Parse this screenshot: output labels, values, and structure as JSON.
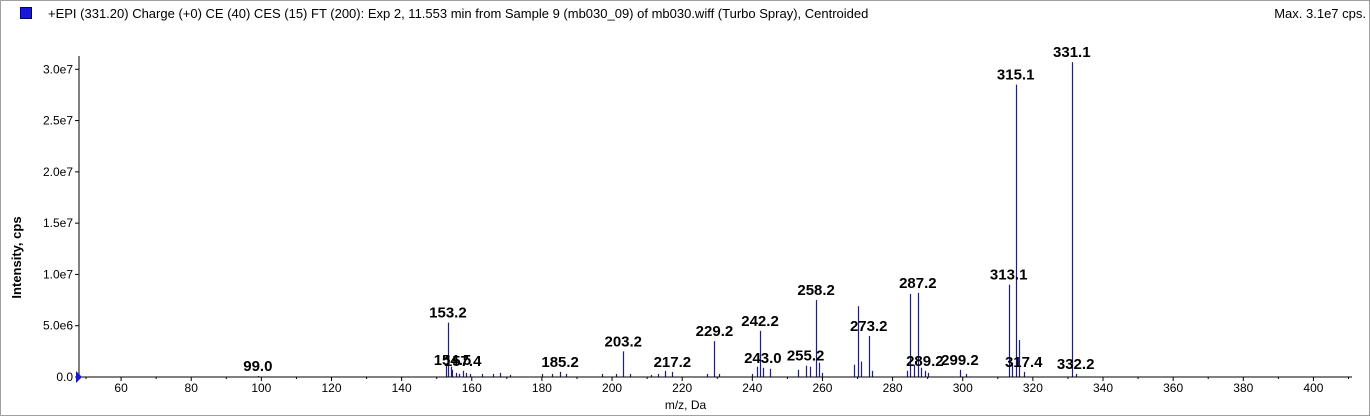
{
  "header": {
    "title": "+EPI (331.20) Charge (+0) CE (40) CES (15) FT (200): Exp 2, 11.553 min from Sample 9 (mb030_09) of mb030.wiff (Turbo Spray), Centroided",
    "max_label": "Max. 3.1e7 cps."
  },
  "colors": {
    "series": "#1c1c8c",
    "legend": "#1818d8"
  },
  "chart_data": {
    "type": "bar",
    "title": "",
    "xlabel": "m/z, Da",
    "ylabel": "Intensity, cps",
    "xlim": [
      48,
      411
    ],
    "ylim": [
      0,
      31100000
    ],
    "x_ticks": [
      60,
      80,
      100,
      120,
      140,
      160,
      180,
      200,
      220,
      240,
      260,
      280,
      300,
      320,
      340,
      360,
      380,
      400
    ],
    "x_tick_labels": [
      "60",
      "80",
      "100",
      "120",
      "140",
      "160",
      "180",
      "200",
      "220",
      "240",
      "260",
      "280",
      "300",
      "320",
      "340",
      "360",
      "380",
      "400"
    ],
    "y_ticks": [
      0,
      5000000,
      10000000,
      15000000,
      20000000,
      25000000,
      30000000
    ],
    "y_tick_labels": [
      "0.0",
      "5.0e6",
      "1.0e7",
      "1.5e7",
      "2.0e7",
      "2.5e7",
      "3.0e7"
    ],
    "grid": false,
    "peaks": [
      {
        "mz": 99.0,
        "intensity": 100000,
        "label": "99.0"
      },
      {
        "mz": 152.7,
        "intensity": 1100000
      },
      {
        "mz": 153.2,
        "intensity": 5300000,
        "label": "153.2"
      },
      {
        "mz": 154.0,
        "intensity": 1000000
      },
      {
        "mz": 154.5,
        "intensity": 700000,
        "label": "154.5"
      },
      {
        "mz": 155.4,
        "intensity": 400000
      },
      {
        "mz": 156.3,
        "intensity": 300000
      },
      {
        "mz": 157.4,
        "intensity": 600000,
        "label": "157.4"
      },
      {
        "mz": 158.3,
        "intensity": 400000
      },
      {
        "mz": 159.5,
        "intensity": 300000
      },
      {
        "mz": 163.0,
        "intensity": 300000
      },
      {
        "mz": 166.0,
        "intensity": 300000
      },
      {
        "mz": 168.0,
        "intensity": 400000
      },
      {
        "mz": 171.0,
        "intensity": 200000
      },
      {
        "mz": 180.0,
        "intensity": 300000
      },
      {
        "mz": 183.0,
        "intensity": 300000
      },
      {
        "mz": 185.2,
        "intensity": 500000,
        "label": "185.2"
      },
      {
        "mz": 187.0,
        "intensity": 300000
      },
      {
        "mz": 197.0,
        "intensity": 300000
      },
      {
        "mz": 201.0,
        "intensity": 300000
      },
      {
        "mz": 203.2,
        "intensity": 2500000,
        "label": "203.2"
      },
      {
        "mz": 205.0,
        "intensity": 300000
      },
      {
        "mz": 211.0,
        "intensity": 200000
      },
      {
        "mz": 213.0,
        "intensity": 300000
      },
      {
        "mz": 215.0,
        "intensity": 600000
      },
      {
        "mz": 217.2,
        "intensity": 500000,
        "label": "217.2"
      },
      {
        "mz": 227.0,
        "intensity": 300000
      },
      {
        "mz": 229.2,
        "intensity": 3500000,
        "label": "229.2"
      },
      {
        "mz": 230.5,
        "intensity": 300000
      },
      {
        "mz": 240.0,
        "intensity": 300000
      },
      {
        "mz": 241.3,
        "intensity": 1000000
      },
      {
        "mz": 242.2,
        "intensity": 4500000,
        "label": "242.2"
      },
      {
        "mz": 243.0,
        "intensity": 900000,
        "label": "243.0"
      },
      {
        "mz": 245.0,
        "intensity": 800000
      },
      {
        "mz": 253.0,
        "intensity": 700000
      },
      {
        "mz": 255.2,
        "intensity": 1100000,
        "label": "255.2"
      },
      {
        "mz": 256.5,
        "intensity": 1000000
      },
      {
        "mz": 258.2,
        "intensity": 7500000,
        "label": "258.2"
      },
      {
        "mz": 259.0,
        "intensity": 1400000
      },
      {
        "mz": 260.0,
        "intensity": 400000
      },
      {
        "mz": 269.0,
        "intensity": 1200000
      },
      {
        "mz": 270.2,
        "intensity": 6900000
      },
      {
        "mz": 271.0,
        "intensity": 1500000
      },
      {
        "mz": 273.2,
        "intensity": 4000000,
        "label": "273.2"
      },
      {
        "mz": 274.0,
        "intensity": 600000
      },
      {
        "mz": 284.0,
        "intensity": 600000
      },
      {
        "mz": 285.1,
        "intensity": 8100000
      },
      {
        "mz": 286.0,
        "intensity": 1200000
      },
      {
        "mz": 287.2,
        "intensity": 8200000,
        "label": "287.2"
      },
      {
        "mz": 288.0,
        "intensity": 900000
      },
      {
        "mz": 289.2,
        "intensity": 600000,
        "label": "289.2"
      },
      {
        "mz": 290.0,
        "intensity": 400000
      },
      {
        "mz": 299.2,
        "intensity": 700000,
        "label": "299.2"
      },
      {
        "mz": 301.0,
        "intensity": 300000
      },
      {
        "mz": 313.1,
        "intensity": 9000000,
        "label": "313.1"
      },
      {
        "mz": 314.0,
        "intensity": 1400000
      },
      {
        "mz": 315.1,
        "intensity": 28500000,
        "label": "315.1"
      },
      {
        "mz": 316.0,
        "intensity": 3600000
      },
      {
        "mz": 317.4,
        "intensity": 500000,
        "label": "317.4"
      },
      {
        "mz": 331.1,
        "intensity": 30700000,
        "label": "331.1"
      },
      {
        "mz": 332.2,
        "intensity": 300000,
        "label": "332.2"
      }
    ]
  }
}
